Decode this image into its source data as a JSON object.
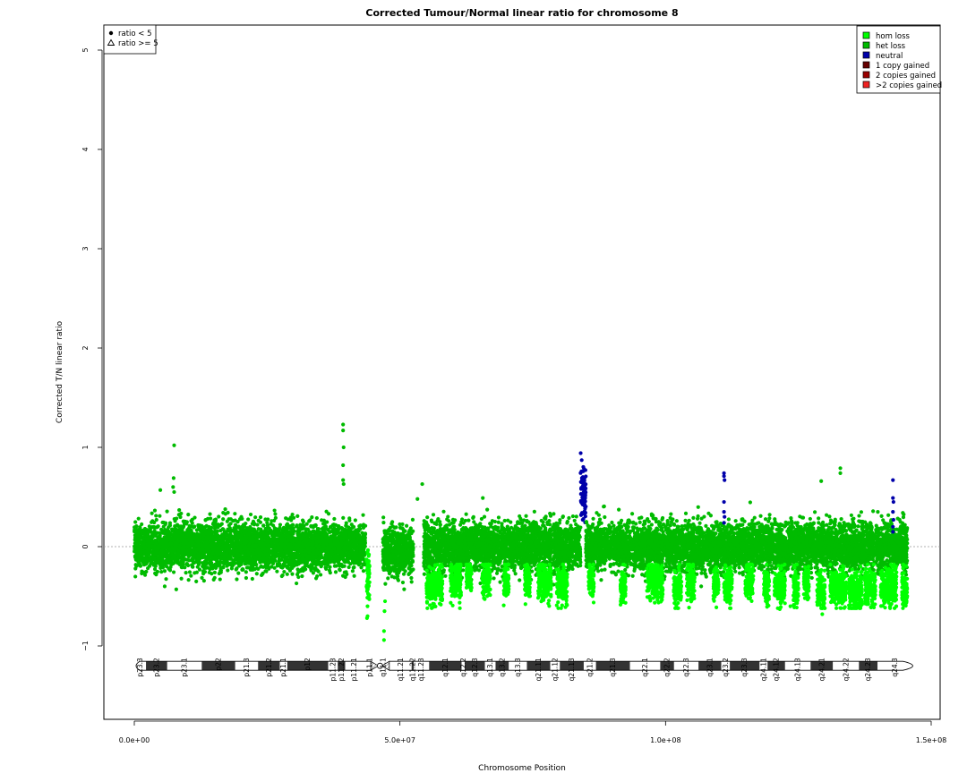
{
  "chart_data": {
    "type": "scatter",
    "title": "Corrected Tumour/Normal linear ratio for chromosome  8",
    "xlabel": "Chromosome Position",
    "ylabel": "Corrected T/N linear ratio",
    "xlim": [
      0,
      150000000
    ],
    "ylim": [
      -1.5,
      5.2
    ],
    "x_ticks": [
      {
        "value": 0,
        "label": "0.0e+00"
      },
      {
        "value": 50000000,
        "label": "5.0e+07"
      },
      {
        "value": 100000000,
        "label": "1.0e+08"
      },
      {
        "value": 150000000,
        "label": "1.5e+08"
      }
    ],
    "y_ticks": [
      {
        "value": -1,
        "label": "−1"
      },
      {
        "value": 0,
        "label": "0"
      },
      {
        "value": 1,
        "label": "1"
      },
      {
        "value": 2,
        "label": "2"
      },
      {
        "value": 3,
        "label": "3"
      },
      {
        "value": 4,
        "label": "4"
      },
      {
        "value": 5,
        "label": "5"
      }
    ],
    "reference_line": 0,
    "marker_legend": {
      "placement": "top-left",
      "entries": [
        {
          "label": "ratio < 5",
          "marker": "circle"
        },
        {
          "label": "ratio >= 5",
          "marker": "triangle"
        }
      ]
    },
    "color_legend": {
      "placement": "top-right",
      "entries": [
        {
          "label": "hom loss",
          "color": "#00ff00"
        },
        {
          "label": "het loss",
          "color": "#00bb00"
        },
        {
          "label": "neutral",
          "color": "#0000aa"
        },
        {
          "label": "1 copy gained",
          "color": "#660000"
        },
        {
          "label": "2 copies gained",
          "color": "#990000"
        },
        {
          "label": ">2 copies gained",
          "color": "#ee2222"
        }
      ]
    },
    "segments": [
      {
        "start": 0,
        "end": 43500000,
        "status": "het loss",
        "center": 0.0,
        "spread": 0.12
      },
      {
        "start": 43700000,
        "end": 44300000,
        "status": "hom loss",
        "center": -0.3,
        "spread": 0.15
      },
      {
        "start": 46800000,
        "end": 52500000,
        "status": "het loss",
        "center": -0.05,
        "spread": 0.12
      },
      {
        "start": 54500000,
        "end": 84000000,
        "status": "het loss",
        "center": 0.0,
        "spread": 0.12
      },
      {
        "start": 84000000,
        "end": 85000000,
        "status": "neutral",
        "center": 0.55,
        "spread": 0.13
      },
      {
        "start": 85000000,
        "end": 111000000,
        "status": "het loss",
        "center": 0.0,
        "spread": 0.12
      },
      {
        "start": 111000000,
        "end": 145500000,
        "status": "het loss",
        "center": 0.0,
        "spread": 0.12
      }
    ],
    "hom_loss_clusters": [
      {
        "start": 55000000,
        "end": 58000000,
        "center": -0.4
      },
      {
        "start": 59500000,
        "end": 61500000,
        "center": -0.35
      },
      {
        "start": 62500000,
        "end": 63500000,
        "center": -0.3
      },
      {
        "start": 65500000,
        "end": 67000000,
        "center": -0.3
      },
      {
        "start": 69500000,
        "end": 70500000,
        "center": -0.35
      },
      {
        "start": 73500000,
        "end": 74500000,
        "center": -0.35
      },
      {
        "start": 76000000,
        "end": 78500000,
        "center": -0.35
      },
      {
        "start": 79500000,
        "end": 81500000,
        "center": -0.4
      },
      {
        "start": 85500000,
        "end": 86500000,
        "center": -0.35
      },
      {
        "start": 91500000,
        "end": 92500000,
        "center": -0.4
      },
      {
        "start": 96500000,
        "end": 99500000,
        "center": -0.35
      },
      {
        "start": 101500000,
        "end": 103000000,
        "center": -0.4
      },
      {
        "start": 104000000,
        "end": 105500000,
        "center": -0.35
      },
      {
        "start": 109000000,
        "end": 110000000,
        "center": -0.35
      },
      {
        "start": 111000000,
        "end": 112500000,
        "center": -0.4
      },
      {
        "start": 115000000,
        "end": 116500000,
        "center": -0.35
      },
      {
        "start": 118500000,
        "end": 119500000,
        "center": -0.4
      },
      {
        "start": 120500000,
        "end": 122500000,
        "center": -0.4
      },
      {
        "start": 124000000,
        "end": 125000000,
        "center": -0.4
      },
      {
        "start": 126000000,
        "end": 127000000,
        "center": -0.35
      },
      {
        "start": 128500000,
        "end": 130000000,
        "center": -0.45
      },
      {
        "start": 131000000,
        "end": 134000000,
        "center": -0.4
      },
      {
        "start": 134500000,
        "end": 137000000,
        "center": -0.45
      },
      {
        "start": 137500000,
        "end": 139500000,
        "center": -0.4
      },
      {
        "start": 140500000,
        "end": 143500000,
        "center": -0.4
      },
      {
        "start": 144500000,
        "end": 145500000,
        "center": -0.45
      }
    ],
    "outliers": [
      {
        "x": 7500000,
        "y": 1.02,
        "status": "het loss"
      },
      {
        "x": 7400000,
        "y": 0.69,
        "status": "het loss"
      },
      {
        "x": 7300000,
        "y": 0.6,
        "status": "het loss"
      },
      {
        "x": 7500000,
        "y": 0.55,
        "status": "het loss"
      },
      {
        "x": 4900000,
        "y": 0.57,
        "status": "het loss"
      },
      {
        "x": 7900000,
        "y": -0.43,
        "status": "het loss"
      },
      {
        "x": 39300000,
        "y": 1.23,
        "status": "het loss"
      },
      {
        "x": 39300000,
        "y": 1.17,
        "status": "het loss"
      },
      {
        "x": 39400000,
        "y": 1.0,
        "status": "het loss"
      },
      {
        "x": 39300000,
        "y": 0.82,
        "status": "het loss"
      },
      {
        "x": 39300000,
        "y": 0.67,
        "status": "het loss"
      },
      {
        "x": 39400000,
        "y": 0.63,
        "status": "het loss"
      },
      {
        "x": 43800000,
        "y": -0.72,
        "status": "hom loss"
      },
      {
        "x": 43900000,
        "y": -0.6,
        "status": "hom loss"
      },
      {
        "x": 47000000,
        "y": -0.94,
        "status": "hom loss"
      },
      {
        "x": 47000000,
        "y": -0.85,
        "status": "hom loss"
      },
      {
        "x": 47100000,
        "y": -0.65,
        "status": "hom loss"
      },
      {
        "x": 47200000,
        "y": -0.55,
        "status": "hom loss"
      },
      {
        "x": 54200000,
        "y": 0.63,
        "status": "het loss"
      },
      {
        "x": 53300000,
        "y": 0.48,
        "status": "het loss"
      },
      {
        "x": 65600000,
        "y": 0.49,
        "status": "het loss"
      },
      {
        "x": 111000000,
        "y": 0.74,
        "status": "neutral"
      },
      {
        "x": 111000000,
        "y": 0.71,
        "status": "neutral"
      },
      {
        "x": 111100000,
        "y": 0.67,
        "status": "neutral"
      },
      {
        "x": 111000000,
        "y": 0.45,
        "status": "neutral"
      },
      {
        "x": 111000000,
        "y": 0.35,
        "status": "neutral"
      },
      {
        "x": 111100000,
        "y": 0.3,
        "status": "neutral"
      },
      {
        "x": 111000000,
        "y": 0.24,
        "status": "neutral"
      },
      {
        "x": 142800000,
        "y": 0.67,
        "status": "neutral"
      },
      {
        "x": 142800000,
        "y": 0.49,
        "status": "neutral"
      },
      {
        "x": 142900000,
        "y": 0.45,
        "status": "neutral"
      },
      {
        "x": 142800000,
        "y": 0.35,
        "status": "neutral"
      },
      {
        "x": 142900000,
        "y": 0.27,
        "status": "neutral"
      },
      {
        "x": 142800000,
        "y": 0.2,
        "status": "neutral"
      },
      {
        "x": 142800000,
        "y": 0.15,
        "status": "neutral"
      },
      {
        "x": 132900000,
        "y": 0.79,
        "status": "het loss"
      },
      {
        "x": 132900000,
        "y": 0.74,
        "status": "het loss"
      },
      {
        "x": 129300000,
        "y": 0.66,
        "status": "het loss"
      },
      {
        "x": 129500000,
        "y": -0.68,
        "status": "hom loss"
      },
      {
        "x": 121500000,
        "y": -0.63,
        "status": "hom loss"
      },
      {
        "x": 123500000,
        "y": -0.6,
        "status": "hom loss"
      }
    ],
    "ideogram": {
      "y": -1.2,
      "centromere": [
        44500000,
        48000000
      ],
      "bands": [
        {
          "name": "p23.3",
          "start": 0,
          "end": 2200000,
          "stain": "gneg"
        },
        {
          "name": "p23.2",
          "start": 2200000,
          "end": 6200000,
          "stain": "gpos"
        },
        {
          "name": "p23.1",
          "start": 6200000,
          "end": 12700000,
          "stain": "gneg"
        },
        {
          "name": "p22",
          "start": 12700000,
          "end": 19000000,
          "stain": "gpos"
        },
        {
          "name": "p21.3",
          "start": 19000000,
          "end": 23300000,
          "stain": "gneg"
        },
        {
          "name": "p21.2",
          "start": 23300000,
          "end": 27400000,
          "stain": "gpos"
        },
        {
          "name": "p21.1",
          "start": 27400000,
          "end": 28800000,
          "stain": "gneg"
        },
        {
          "name": "p12",
          "start": 28800000,
          "end": 36500000,
          "stain": "gpos"
        },
        {
          "name": "p11.23",
          "start": 36500000,
          "end": 38300000,
          "stain": "gneg"
        },
        {
          "name": "p11.22",
          "start": 38300000,
          "end": 39700000,
          "stain": "gpos"
        },
        {
          "name": "p11.21",
          "start": 39700000,
          "end": 43100000,
          "stain": "gneg"
        },
        {
          "name": "p11.1",
          "start": 43100000,
          "end": 45600000,
          "stain": "acen"
        },
        {
          "name": "q11.1",
          "start": 45600000,
          "end": 48100000,
          "stain": "acen"
        },
        {
          "name": "q11.21",
          "start": 48100000,
          "end": 52200000,
          "stain": "gneg"
        },
        {
          "name": "q11.22",
          "start": 52200000,
          "end": 52600000,
          "stain": "gpos"
        },
        {
          "name": "q11.23",
          "start": 52600000,
          "end": 55500000,
          "stain": "gneg"
        },
        {
          "name": "q12.1",
          "start": 55500000,
          "end": 61600000,
          "stain": "gpos"
        },
        {
          "name": "q12.2",
          "start": 61600000,
          "end": 62200000,
          "stain": "gneg"
        },
        {
          "name": "q12.3",
          "start": 62200000,
          "end": 66000000,
          "stain": "gpos"
        },
        {
          "name": "q13.1",
          "start": 66000000,
          "end": 68000000,
          "stain": "gneg"
        },
        {
          "name": "q13.2",
          "start": 68000000,
          "end": 70500000,
          "stain": "gpos"
        },
        {
          "name": "q13.3",
          "start": 70500000,
          "end": 73900000,
          "stain": "gneg"
        },
        {
          "name": "q21.11",
          "start": 73900000,
          "end": 78300000,
          "stain": "gpos"
        },
        {
          "name": "q21.12",
          "start": 78300000,
          "end": 80100000,
          "stain": "gneg"
        },
        {
          "name": "q21.13",
          "start": 80100000,
          "end": 84600000,
          "stain": "gpos"
        },
        {
          "name": "q21.2",
          "start": 84600000,
          "end": 86900000,
          "stain": "gneg"
        },
        {
          "name": "q21.3",
          "start": 86900000,
          "end": 93300000,
          "stain": "gpos"
        },
        {
          "name": "q22.1",
          "start": 93300000,
          "end": 99000000,
          "stain": "gneg"
        },
        {
          "name": "q22.2",
          "start": 99000000,
          "end": 101600000,
          "stain": "gpos"
        },
        {
          "name": "q22.3",
          "start": 101600000,
          "end": 106200000,
          "stain": "gneg"
        },
        {
          "name": "q23.1",
          "start": 106200000,
          "end": 110500000,
          "stain": "gpos"
        },
        {
          "name": "q23.2",
          "start": 110500000,
          "end": 112100000,
          "stain": "gneg"
        },
        {
          "name": "q23.3",
          "start": 112100000,
          "end": 117700000,
          "stain": "gpos"
        },
        {
          "name": "q24.11",
          "start": 117700000,
          "end": 119200000,
          "stain": "gneg"
        },
        {
          "name": "q24.12",
          "start": 119200000,
          "end": 122500000,
          "stain": "gpos"
        },
        {
          "name": "q24.13",
          "start": 122500000,
          "end": 127300000,
          "stain": "gneg"
        },
        {
          "name": "q24.21",
          "start": 127300000,
          "end": 131500000,
          "stain": "gpos"
        },
        {
          "name": "q24.22",
          "start": 131500000,
          "end": 136400000,
          "stain": "gneg"
        },
        {
          "name": "q24.23",
          "start": 136400000,
          "end": 139900000,
          "stain": "gpos"
        },
        {
          "name": "q24.3",
          "start": 139900000,
          "end": 146364022,
          "stain": "gneg"
        }
      ]
    }
  }
}
